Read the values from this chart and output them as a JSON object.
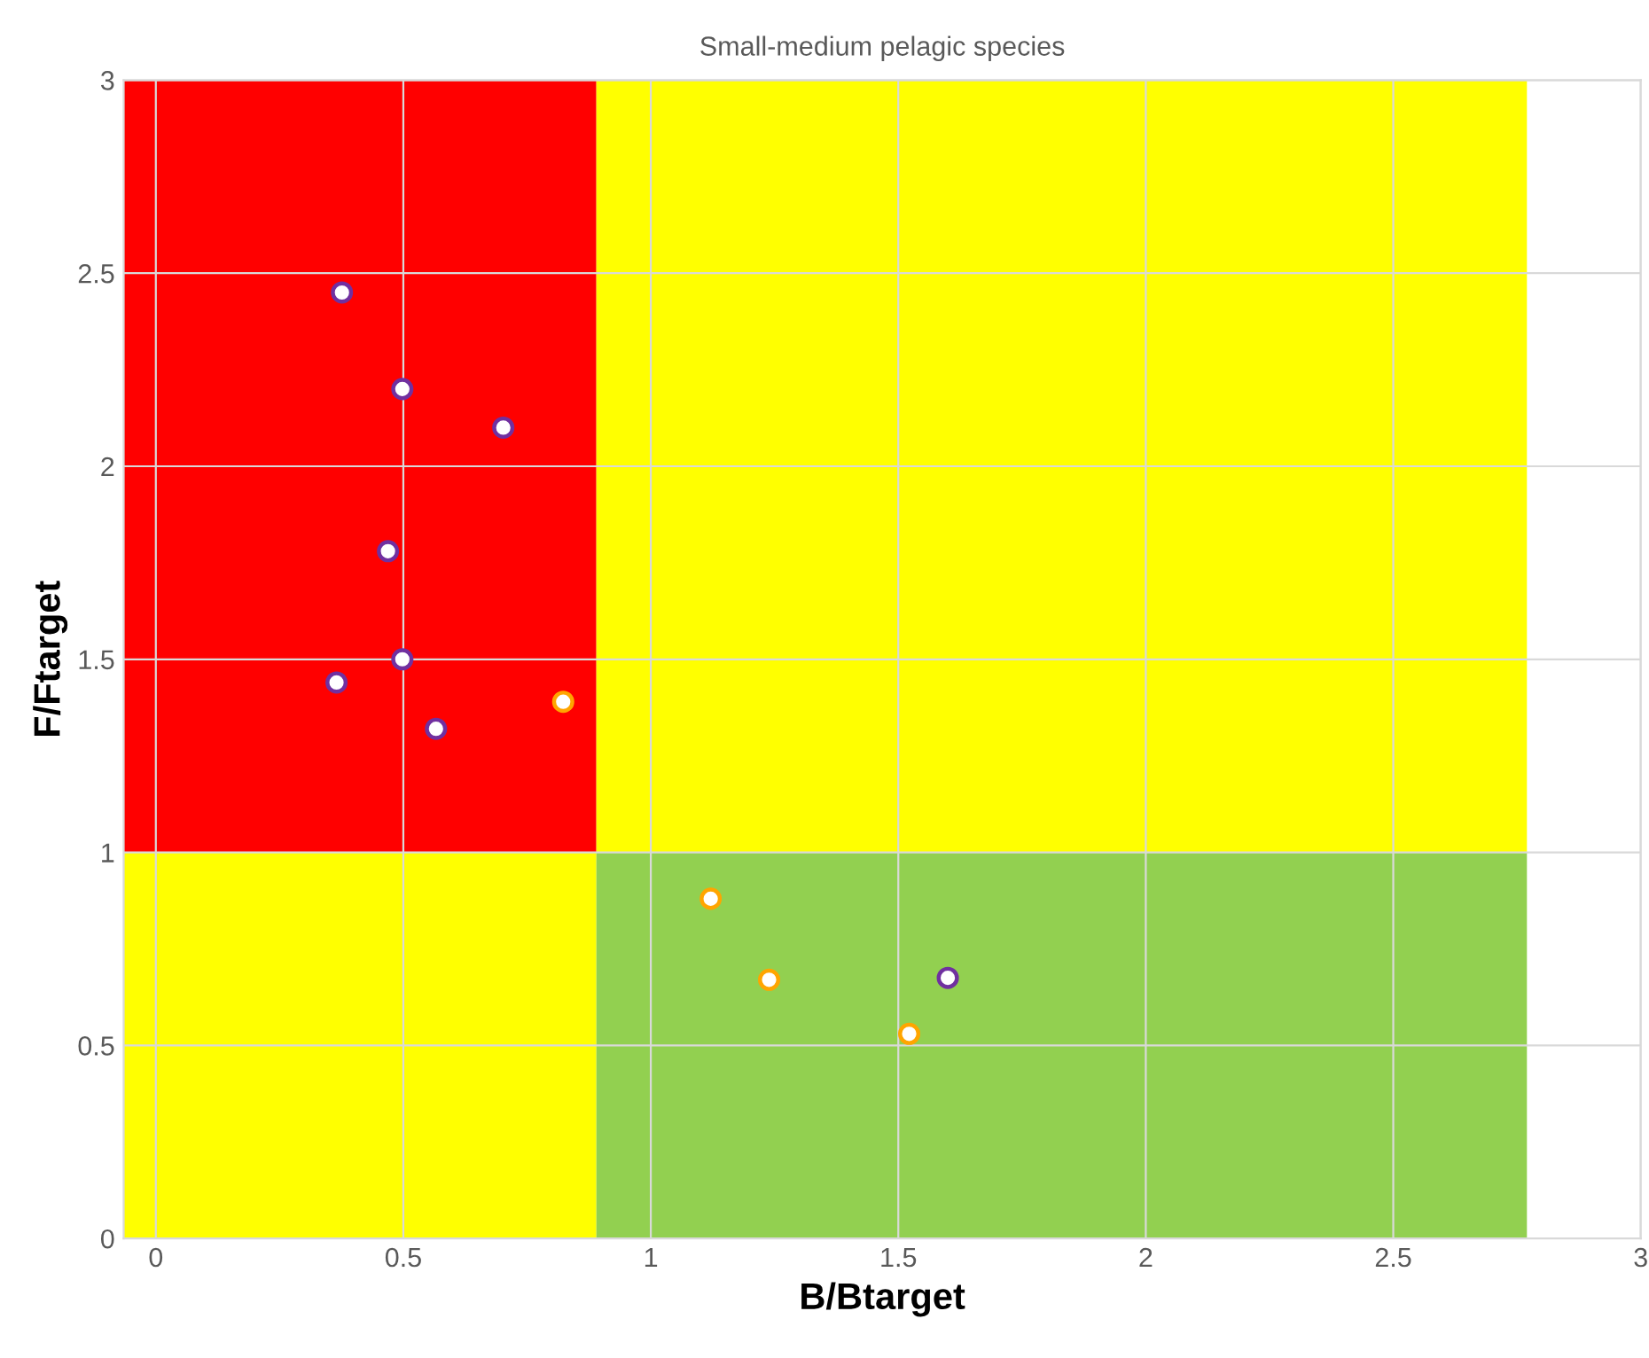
{
  "chart_data": {
    "type": "scatter",
    "title": "Small-medium pelagic species",
    "xlabel": "B/Btarget",
    "ylabel": "F/Ftarget",
    "xlim": [
      -0.065,
      3
    ],
    "ylim": [
      0,
      3
    ],
    "xticks": [
      0,
      0.5,
      1,
      1.5,
      2,
      2.5,
      3
    ],
    "yticks": [
      0,
      0.5,
      1,
      1.5,
      2,
      2.5,
      3
    ],
    "grid": true,
    "stacked": true,
    "x": [
      -0.065,
      0.89,
      0.89,
      2.77
    ],
    "series": [
      {
        "type": "area",
        "marker": "none",
        "color": "#ffff00",
        "values": [
          1,
          1,
          null,
          null
        ]
      },
      {
        "type": "area",
        "marker": "none",
        "color": "#92d050",
        "values": [
          null,
          null,
          1,
          1
        ]
      },
      {
        "type": "area",
        "marker": "none",
        "color": "#ff0000",
        "values": [
          2,
          2,
          null,
          null
        ]
      },
      {
        "type": "area",
        "marker": "none",
        "color": "#ffff00",
        "values": [
          null,
          null,
          2,
          2
        ]
      },
      {
        "marker": "circle",
        "color": "#7030a0",
        "x": [
          0.376,
          0.498,
          0.702,
          0.469,
          0.498,
          0.365,
          0.566,
          1.6
        ],
        "values": [
          2.45,
          2.2,
          2.1,
          1.78,
          1.5,
          1.44,
          1.32,
          0.675
        ]
      },
      {
        "marker": "circle",
        "color": "#ffa500",
        "x": [
          0.823,
          1.121,
          1.239,
          1.522
        ],
        "values": [
          1.39,
          0.88,
          0.67,
          0.53
        ]
      }
    ]
  }
}
